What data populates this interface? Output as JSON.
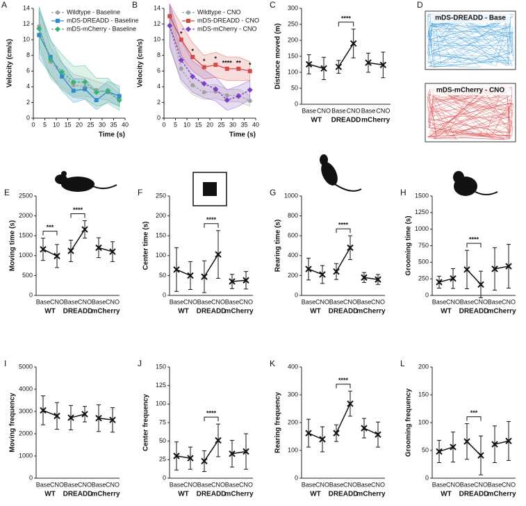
{
  "chart_data": [
    {
      "type": "line",
      "label": "A",
      "xlabel": "Time (s)",
      "ylabel": "Velocity (cm/s)",
      "x": [
        2.5,
        7.5,
        12.5,
        17.5,
        22.5,
        27.5,
        32.5,
        37.5
      ],
      "xlim": [
        0,
        40
      ],
      "xticks": [
        0,
        5,
        10,
        15,
        20,
        25,
        30,
        35,
        40
      ],
      "ylim": [
        0,
        14
      ],
      "yticks": [
        0,
        2,
        4,
        6,
        8,
        10,
        12,
        14
      ],
      "series": [
        {
          "name": "Wildtype - Baseline",
          "color": "#a0a0a0",
          "marker": "circle",
          "dashed": true,
          "values": [
            11.7,
            7.2,
            5.5,
            4.2,
            4.0,
            3.6,
            3.3,
            2.3
          ],
          "errors": [
            2.4,
            1.8,
            1.5,
            1.4,
            1.2,
            1.1,
            1.0,
            0.8
          ]
        },
        {
          "name": "mDS-DREADD - Baseline",
          "color": "#2e8bd0",
          "marker": "square",
          "dashed": false,
          "values": [
            10.6,
            7.8,
            5.3,
            3.5,
            3.7,
            2.3,
            3.4,
            2.8
          ],
          "errors": [
            3.0,
            2.2,
            1.8,
            1.5,
            1.3,
            1.2,
            1.3,
            1.3
          ]
        },
        {
          "name": "mDS-mCherry - Baseline",
          "color": "#3bb07a",
          "marker": "diamond",
          "dashed": true,
          "values": [
            11.4,
            7.5,
            5.9,
            4.6,
            4.6,
            3.3,
            3.5,
            2.3
          ],
          "errors": [
            2.8,
            2.4,
            2.2,
            2.0,
            2.1,
            1.8,
            1.6,
            1.3
          ]
        }
      ]
    },
    {
      "type": "line",
      "label": "B",
      "xlabel": "Time (s)",
      "ylabel": "Velocity (cm/s)",
      "x": [
        2.5,
        7.5,
        12.5,
        17.5,
        22.5,
        27.5,
        32.5,
        37.5
      ],
      "xlim": [
        0,
        40
      ],
      "xticks": [
        0,
        5,
        10,
        15,
        20,
        25,
        30,
        35,
        40
      ],
      "ylim": [
        0,
        14
      ],
      "yticks": [
        0,
        2,
        4,
        6,
        8,
        10,
        12,
        14
      ],
      "series": [
        {
          "name": "Wildtype - CNO",
          "color": "#a0a0a0",
          "marker": "circle",
          "dashed": true,
          "values": [
            11.8,
            6.3,
            4.2,
            3.3,
            3.4,
            2.9,
            2.9,
            2.2
          ],
          "errors": [
            2.5,
            1.8,
            1.2,
            0.9,
            0.9,
            0.8,
            0.8,
            0.7
          ]
        },
        {
          "name": "mDS-DREADD - CNO",
          "color": "#d24a43",
          "marker": "square",
          "dashed": false,
          "values": [
            13.0,
            10.0,
            7.8,
            6.5,
            6.8,
            6.3,
            6.3,
            6.0
          ],
          "errors": [
            1.5,
            2.0,
            1.8,
            1.5,
            1.6,
            1.5,
            1.5,
            1.2
          ]
        },
        {
          "name": "mDS-mCherry - CNO",
          "color": "#7b3fc4",
          "marker": "diamond",
          "dashed": true,
          "values": [
            11.8,
            7.4,
            5.3,
            4.4,
            3.7,
            2.3,
            2.8,
            3.6
          ],
          "errors": [
            2.8,
            2.5,
            2.0,
            1.8,
            1.5,
            1.3,
            1.3,
            1.2
          ]
        }
      ],
      "annotations": [
        {
          "x": 7.5,
          "label": "*"
        },
        {
          "x": 12.5,
          "label": "*"
        },
        {
          "x": 17.5,
          "label": "*"
        },
        {
          "x": 22.5,
          "label": "*"
        },
        {
          "x": 27.5,
          "label": "****"
        },
        {
          "x": 32.5,
          "label": "**"
        },
        {
          "x": 37.5,
          "label": "*"
        }
      ]
    },
    {
      "type": "paired",
      "label": "C",
      "ylabel": "Distance moved (m)",
      "ylim": [
        0,
        300
      ],
      "yticks": [
        0,
        50,
        100,
        150,
        200,
        250,
        300
      ],
      "categories": [
        "Base",
        "CNO",
        "Base",
        "CNO",
        "Base",
        "CNO"
      ],
      "groups": [
        "WT",
        "DREADD",
        "mCherry"
      ],
      "means": [
        125,
        112,
        117,
        190,
        130,
        123
      ],
      "errors": [
        30,
        35,
        20,
        45,
        30,
        40
      ],
      "significance": [
        {
          "from": 2,
          "to": 3,
          "label": "****"
        }
      ]
    },
    {
      "type": "trajectory",
      "label": "D",
      "titles": [
        "mDS-DREADD - Base",
        "mDS-mCherry - CNO"
      ],
      "colors": [
        "#3a9ad9",
        "#d94a4a"
      ]
    },
    {
      "type": "paired",
      "label": "E",
      "ylabel": "Moving time (s)",
      "ylim": [
        0,
        2500
      ],
      "yticks": [
        0,
        500,
        1000,
        1500,
        2000,
        2500
      ],
      "categories": [
        "Base",
        "CNO",
        "Base",
        "CNO",
        "Base",
        "CNO"
      ],
      "groups": [
        "WT",
        "DREADD",
        "mCherry"
      ],
      "means": [
        1160,
        990,
        1120,
        1660,
        1200,
        1100
      ],
      "errors": [
        280,
        290,
        270,
        220,
        250,
        250
      ],
      "significance": [
        {
          "from": 0,
          "to": 1,
          "label": "***"
        },
        {
          "from": 2,
          "to": 3,
          "label": "****"
        }
      ]
    },
    {
      "type": "paired",
      "label": "F",
      "ylabel": "Center time (s)",
      "ylim": [
        0,
        250
      ],
      "yticks": [
        0,
        50,
        100,
        150,
        200,
        250
      ],
      "categories": [
        "Base",
        "CNO",
        "Base",
        "CNO",
        "Base",
        "CNO"
      ],
      "groups": [
        "WT",
        "DREADD",
        "mCherry"
      ],
      "means": [
        65,
        50,
        47,
        103,
        35,
        38
      ],
      "errors": [
        55,
        35,
        40,
        60,
        18,
        22
      ],
      "significance": [
        {
          "from": 2,
          "to": 3,
          "label": "****"
        }
      ]
    },
    {
      "type": "paired",
      "label": "G",
      "ylabel": "Rearing time (s)",
      "ylim": [
        0,
        1000
      ],
      "yticks": [
        0,
        200,
        400,
        600,
        800,
        1000
      ],
      "categories": [
        "Base",
        "CNO",
        "Base",
        "CNO",
        "Base",
        "CNO"
      ],
      "groups": [
        "WT",
        "DREADD",
        "mCherry"
      ],
      "means": [
        265,
        210,
        240,
        480,
        180,
        160
      ],
      "errors": [
        110,
        90,
        80,
        120,
        50,
        50
      ],
      "significance": [
        {
          "from": 2,
          "to": 3,
          "label": "****"
        }
      ]
    },
    {
      "type": "paired",
      "label": "H",
      "ylabel": "Grooming time (s)",
      "ylim": [
        0,
        1500
      ],
      "yticks": [
        0,
        250,
        500,
        750,
        1000,
        1250,
        1500
      ],
      "categories": [
        "Base",
        "CNO",
        "Base",
        "CNO",
        "Base",
        "CNO"
      ],
      "groups": [
        "WT",
        "DREADD",
        "mCherry"
      ],
      "means": [
        200,
        255,
        390,
        165,
        400,
        440
      ],
      "errors": [
        90,
        150,
        290,
        200,
        320,
        330
      ],
      "significance": [
        {
          "from": 2,
          "to": 3,
          "label": "****"
        }
      ]
    },
    {
      "type": "paired",
      "label": "I",
      "ylabel": "Moving frequency",
      "ylim": [
        0,
        5000
      ],
      "yticks": [
        0,
        1000,
        2000,
        3000,
        4000,
        5000
      ],
      "categories": [
        "Base",
        "CNO",
        "Base",
        "CNO",
        "Base",
        "CNO"
      ],
      "groups": [
        "WT",
        "DREADD",
        "mCherry"
      ],
      "means": [
        3050,
        2800,
        2720,
        2880,
        2700,
        2620
      ],
      "errors": [
        650,
        600,
        550,
        350,
        600,
        550
      ],
      "significance": []
    },
    {
      "type": "paired",
      "label": "J",
      "ylabel": "Center frequency",
      "ylim": [
        0,
        150
      ],
      "yticks": [
        0,
        25,
        50,
        75,
        100,
        125,
        150
      ],
      "categories": [
        "Base",
        "CNO",
        "Base",
        "CNO",
        "Base",
        "CNO"
      ],
      "groups": [
        "WT",
        "DREADD",
        "mCherry"
      ],
      "means": [
        30,
        27,
        23,
        51,
        33,
        36
      ],
      "errors": [
        19,
        15,
        14,
        22,
        18,
        24
      ],
      "significance": [
        {
          "from": 2,
          "to": 3,
          "label": "****"
        }
      ]
    },
    {
      "type": "paired",
      "label": "K",
      "ylabel": "Rearing frequency",
      "ylim": [
        0,
        400
      ],
      "yticks": [
        0,
        100,
        200,
        300,
        400
      ],
      "categories": [
        "Base",
        "CNO",
        "Base",
        "CNO",
        "Base",
        "CNO"
      ],
      "groups": [
        "WT",
        "DREADD",
        "mCherry"
      ],
      "means": [
        162,
        140,
        162,
        268,
        180,
        157
      ],
      "errors": [
        50,
        45,
        30,
        45,
        35,
        45
      ],
      "significance": [
        {
          "from": 2,
          "to": 3,
          "label": "****"
        }
      ]
    },
    {
      "type": "paired",
      "label": "L",
      "ylabel": "Grooming frequency",
      "ylim": [
        0,
        200
      ],
      "yticks": [
        0,
        50,
        100,
        150,
        200
      ],
      "categories": [
        "Base",
        "CNO",
        "Base",
        "CNO",
        "Base",
        "CNO"
      ],
      "groups": [
        "WT",
        "DREADD",
        "mCherry"
      ],
      "means": [
        48,
        56,
        66,
        41,
        61,
        67
      ],
      "errors": [
        20,
        27,
        32,
        35,
        33,
        35
      ],
      "significance": [
        {
          "from": 2,
          "to": 3,
          "label": "***"
        }
      ]
    }
  ]
}
